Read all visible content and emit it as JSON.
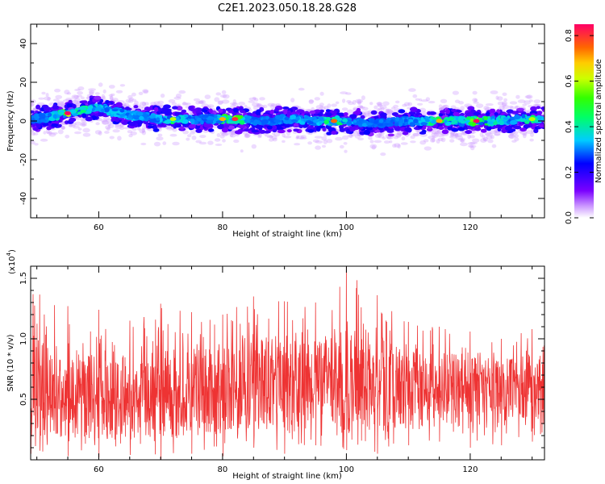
{
  "title": "C2E1.2023.050.18.28.G28",
  "chart_data": [
    {
      "type": "heatmap",
      "xlabel": "Height of straight line (km)",
      "ylabel": "Frequency (Hz)",
      "xlim": [
        49,
        132
      ],
      "ylim": [
        -50,
        50
      ],
      "x_ticks": [
        60,
        80,
        100,
        120
      ],
      "y_ticks": [
        -40,
        -20,
        0,
        20,
        40
      ],
      "colorbar": {
        "label": "Normalized spectral amplitude",
        "range": [
          0.0,
          0.85
        ],
        "ticks": [
          0.0,
          0.2,
          0.4,
          0.6,
          0.8
        ]
      },
      "ridge": {
        "x": [
          49,
          52,
          55,
          58,
          60,
          62,
          65,
          68,
          70,
          72,
          75,
          78,
          80,
          82,
          85,
          88,
          90,
          92,
          95,
          98,
          100,
          103,
          106,
          109,
          112,
          115,
          118,
          121,
          124,
          127,
          130,
          132
        ],
        "y": [
          1,
          2,
          4,
          6,
          7,
          5,
          3,
          2,
          1,
          1,
          1,
          1,
          1,
          1,
          0,
          0,
          1,
          1,
          0,
          0,
          0,
          -1,
          -1,
          0,
          0,
          0,
          0,
          0,
          0,
          1,
          1,
          1
        ],
        "peak_amplitude": [
          0.3,
          0.35,
          0.85,
          0.5,
          0.45,
          0.4,
          0.4,
          0.35,
          0.4,
          0.6,
          0.35,
          0.3,
          0.7,
          0.8,
          0.3,
          0.3,
          0.35,
          0.4,
          0.35,
          0.75,
          0.4,
          0.35,
          0.3,
          0.35,
          0.4,
          0.7,
          0.5,
          0.85,
          0.5,
          0.4,
          0.6,
          0.35
        ]
      },
      "grid": false
    },
    {
      "type": "line",
      "xlabel": "Height of straight line (km)",
      "ylabel": "SNR (10 * v/v)",
      "y_multiplier": "(x10",
      "y_multiplier_exp": "4",
      "xlim": [
        49,
        132
      ],
      "ylim": [
        0,
        1.6
      ],
      "x_ticks": [
        60,
        80,
        100,
        120
      ],
      "y_ticks": [
        0.5,
        1.0,
        1.5
      ],
      "color": "#ee3333",
      "envelope": {
        "x": [
          49,
          55,
          60,
          65,
          70,
          75,
          80,
          85,
          90,
          95,
          100,
          105,
          110,
          115,
          120,
          125,
          130,
          132
        ],
        "mean": [
          0.5,
          0.5,
          0.52,
          0.52,
          0.55,
          0.55,
          0.6,
          0.62,
          0.6,
          0.6,
          0.62,
          0.62,
          0.6,
          0.62,
          0.62,
          0.6,
          0.62,
          0.62
        ],
        "max": [
          1.43,
          1.27,
          1.24,
          1.15,
          1.29,
          1.22,
          1.2,
          1.35,
          1.31,
          1.3,
          1.6,
          1.36,
          1.14,
          1.1,
          1.06,
          1.0,
          1.08,
          0.95
        ],
        "min": [
          0.05,
          0.03,
          0.02,
          0.04,
          0.0,
          0.05,
          0.03,
          0.1,
          0.05,
          0.12,
          0.08,
          0.05,
          0.12,
          0.15,
          0.1,
          0.12,
          0.15,
          0.2
        ]
      },
      "grid": false
    }
  ]
}
